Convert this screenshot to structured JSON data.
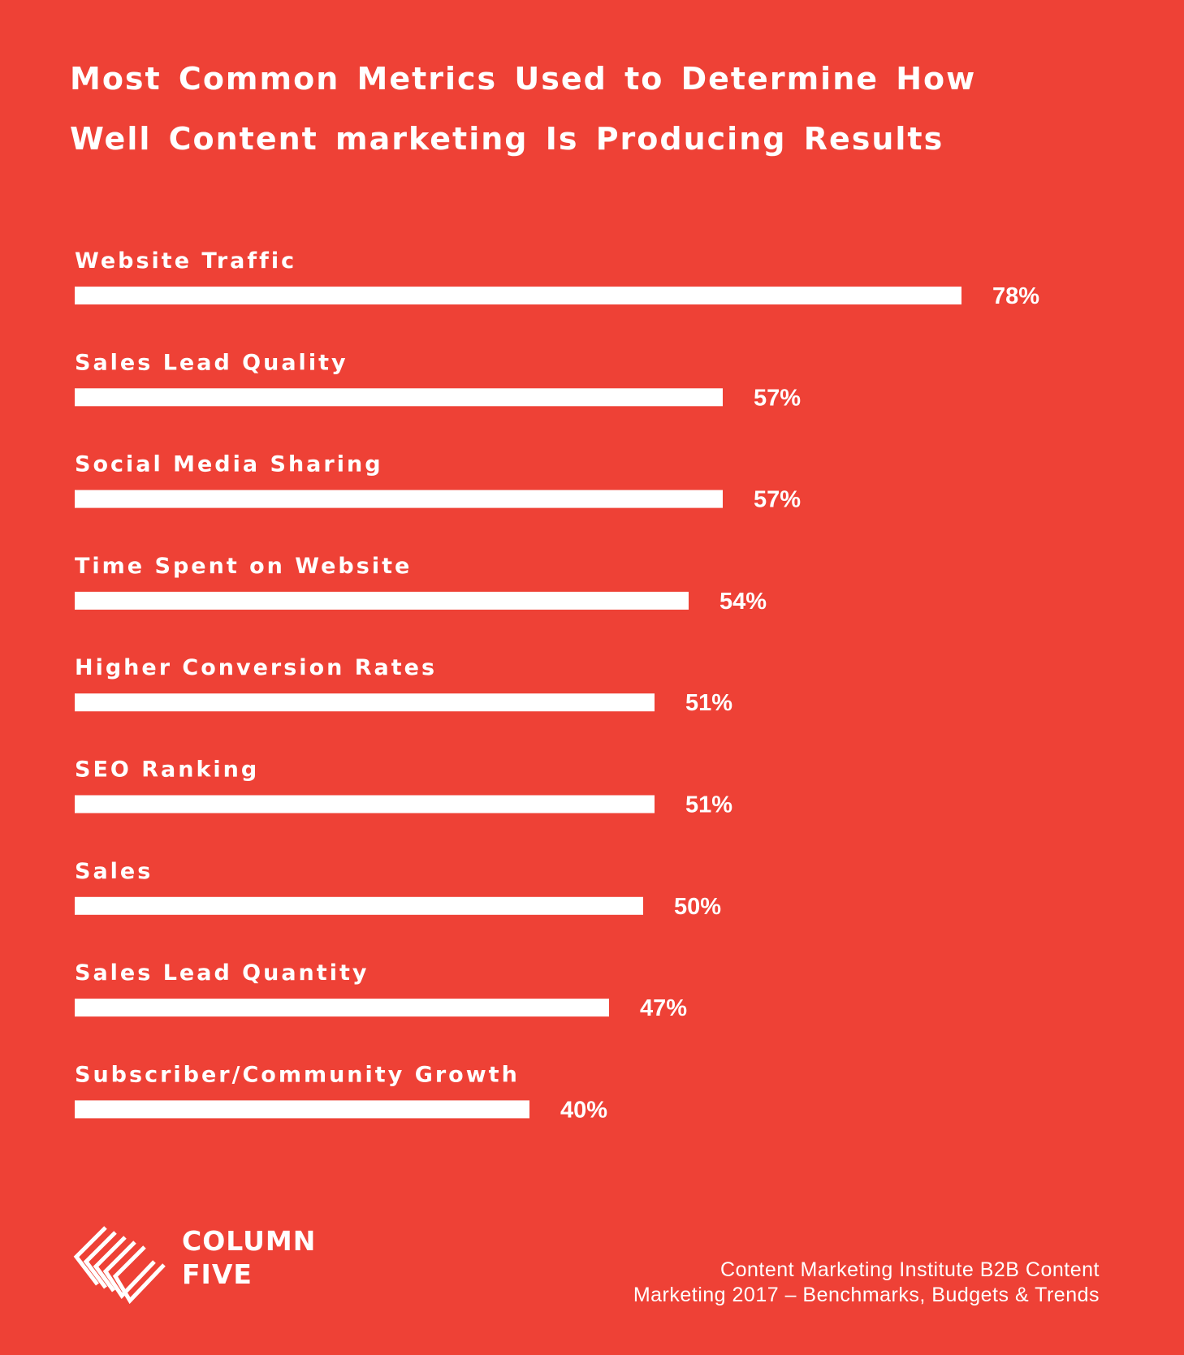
{
  "chart_data": {
    "type": "bar",
    "orientation": "horizontal",
    "title": "Most Common Metrics Used to Determine How Well Content marketing Is Producing Results",
    "title_lines": [
      "Most Common Metrics Used to Determine How",
      "Well Content marketing Is Producing Results"
    ],
    "categories": [
      "Website Traffic",
      "Sales Lead Quality",
      "Social Media Sharing",
      "Time Spent on Website",
      "Higher Conversion Rates",
      "SEO Ranking",
      "Sales",
      "Sales Lead Quantity",
      "Subscriber/Community Growth"
    ],
    "values": [
      78,
      57,
      57,
      54,
      51,
      51,
      50,
      47,
      40
    ],
    "value_labels": [
      "78%",
      "57%",
      "57%",
      "54%",
      "51%",
      "51%",
      "50%",
      "47%",
      "40%"
    ],
    "unit": "%",
    "xlim": [
      0,
      100
    ],
    "grid": false,
    "legend": "none",
    "colors": {
      "background": "#ee4136",
      "bar": "#ffffff",
      "text": "#ffffff"
    }
  },
  "brand": {
    "line1": "COLUMN",
    "line2": "FIVE",
    "logo_icon": "column-five-chevron-logo"
  },
  "source": {
    "line1": "Content Marketing Institute B2B Content",
    "line2": "Marketing 2017 – Benchmarks, Budgets & Trends"
  }
}
